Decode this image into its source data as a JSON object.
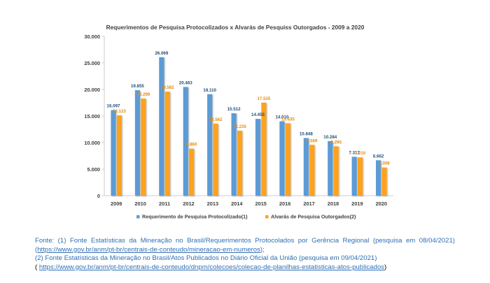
{
  "chart_data": {
    "type": "bar",
    "title": "Requerimentos de Pesquisa Protocolizados x Alvarás de Pesquiss Outorgados - 2009 a 2020",
    "categories": [
      "2009",
      "2010",
      "2011",
      "2012",
      "2013",
      "2014",
      "2015",
      "2016",
      "2017",
      "2018",
      "2019",
      "2020"
    ],
    "series": [
      {
        "name": "Requerimento de Pesquisa Protocolizado(1)",
        "color": "#5b9bd5",
        "label_color": "#1f4e79",
        "values": [
          16097,
          19855,
          26069,
          20463,
          19110,
          15512,
          14455,
          14010,
          10848,
          10284,
          7317,
          6662
        ],
        "labels": [
          "16.097",
          "19.855",
          "26.069",
          "20.463",
          "19.110",
          "15.512",
          "14.455",
          "14.010",
          "10.848",
          "10.284",
          "7.317",
          "6.662"
        ]
      },
      {
        "name": "Alvarás de Pesquisa Outorgados(2)",
        "color": "#ffa21f",
        "label_color": "#e38b10",
        "values": [
          15123,
          18299,
          19582,
          8860,
          13562,
          12235,
          17525,
          13635,
          9569,
          9295,
          7210,
          5308
        ],
        "labels": [
          "15.123",
          "18.299",
          "19.582",
          "8.860",
          "13.562",
          "12.235",
          "17.525",
          "13.635",
          "9.569",
          "9.295",
          "7.210",
          "5.308"
        ]
      }
    ],
    "ylim": [
      0,
      30000
    ],
    "yticks": [
      0,
      5000,
      10000,
      15000,
      20000,
      25000,
      30000
    ],
    "ytick_labels": [
      "0",
      "5.000",
      "10.000",
      "15.000",
      "20.000",
      "25.000",
      "30.000"
    ],
    "grid": false,
    "legend": "bottom"
  },
  "source": {
    "line1_text": "Fonte: (1) Fonte Estatísticas da Mineração no Brasil/Requerimentos Protocolados por Gerência Regional (pesquisa em 08/04/2021) (",
    "line1_link": "https://www.gov.br/anm/pt-br/centrais-de-conteudo/mineracao-em-numeros",
    "line1_end": ");",
    "line2_text": "(2) Fonte Estatísticas da Mineração no Brasil/Atos Publicados no Diário Oficial da União (pesquisa em 09/04/2021)",
    "line3_open": "( ",
    "line3_link": "https://www.gov.br/anm/pt-br/centrais-de-conteudo/dnpm/colecoes/colecao-de-planilhas-estatisticas-atos-publicados",
    "line3_end": ")"
  }
}
